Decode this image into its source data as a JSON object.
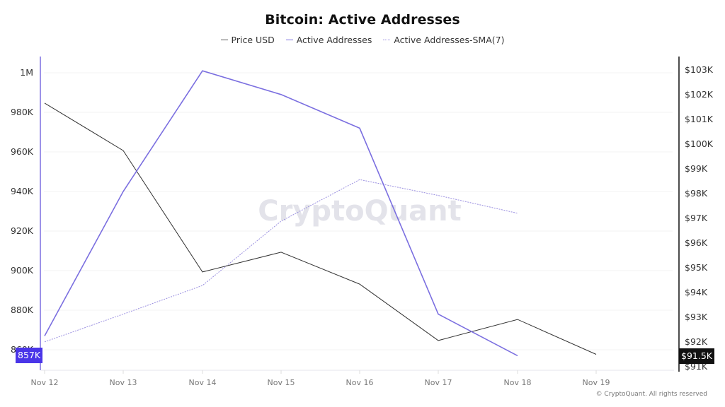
{
  "header": {
    "title": "Bitcoin: Active Addresses"
  },
  "legend": [
    {
      "label": "Price USD",
      "color": "#333333",
      "style": "solid"
    },
    {
      "label": "Active Addresses",
      "color": "#7b6fe0",
      "style": "solid"
    },
    {
      "label": "Active Addresses-SMA(7)",
      "color": "#9a8fe0",
      "style": "dotted"
    }
  ],
  "axes": {
    "left_ticks": [
      "1M",
      "980K",
      "960K",
      "940K",
      "920K",
      "900K",
      "880K",
      "860K"
    ],
    "right_ticks": [
      "$103K",
      "$102K",
      "$101K",
      "$100K",
      "$99K",
      "$98K",
      "$97K",
      "$96K",
      "$95K",
      "$94K",
      "$93K",
      "$92K",
      "$91K"
    ],
    "x_ticks": [
      "Nov 12",
      "Nov 13",
      "Nov 14",
      "Nov 15",
      "Nov 16",
      "Nov 17",
      "Nov 18",
      "Nov 19"
    ],
    "left_badge": "857K",
    "right_badge": "$91.5K"
  },
  "watermark": "CryptoQuant",
  "footer": {
    "copyright": "© CryptoQuant. All rights reserved"
  },
  "colors": {
    "price": "#333333",
    "active": "#7b6fe0",
    "sma": "#9a8fe0",
    "left_badge_bg": "#4a35e8",
    "right_badge_bg": "#111111"
  },
  "chart_data": {
    "type": "line",
    "title": "Bitcoin: Active Addresses",
    "x": [
      "Nov 12",
      "Nov 13",
      "Nov 14",
      "Nov 15",
      "Nov 16",
      "Nov 17",
      "Nov 18",
      "Nov 19"
    ],
    "series": [
      {
        "name": "Price USD",
        "axis": "right",
        "unit": "USD",
        "values": [
          101660,
          99740,
          94830,
          95630,
          94340,
          92060,
          92910,
          91500
        ]
      },
      {
        "name": "Active Addresses",
        "axis": "left",
        "values": [
          867000,
          940000,
          1001000,
          989000,
          972000,
          878000,
          857000,
          null
        ]
      },
      {
        "name": "Active Addresses-SMA(7)",
        "axis": "left",
        "values": [
          864000,
          878000,
          892500,
          925000,
          946000,
          938000,
          929000,
          null
        ]
      }
    ],
    "xlabel": "",
    "ylabel_left": "Active Addresses",
    "ylabel_right": "Price USD",
    "ylim_left": [
      849500,
      1010000
    ],
    "ylim_right": [
      90850,
      103100
    ],
    "grid": true,
    "legend_position": "top"
  }
}
